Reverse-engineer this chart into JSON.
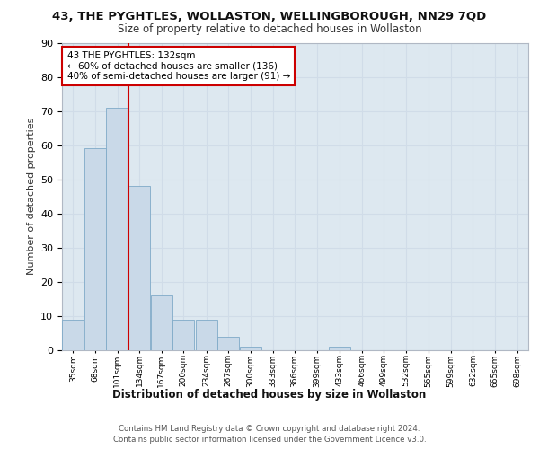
{
  "title1": "43, THE PYGHTLES, WOLLASTON, WELLINGBOROUGH, NN29 7QD",
  "title2": "Size of property relative to detached houses in Wollaston",
  "xlabel": "Distribution of detached houses by size in Wollaston",
  "ylabel": "Number of detached properties",
  "bin_labels": [
    "35sqm",
    "68sqm",
    "101sqm",
    "134sqm",
    "167sqm",
    "200sqm",
    "234sqm",
    "267sqm",
    "300sqm",
    "333sqm",
    "366sqm",
    "399sqm",
    "433sqm",
    "466sqm",
    "499sqm",
    "532sqm",
    "565sqm",
    "599sqm",
    "632sqm",
    "665sqm",
    "698sqm"
  ],
  "bar_heights": [
    9,
    59,
    71,
    48,
    16,
    9,
    9,
    4,
    1,
    0,
    0,
    0,
    1,
    0,
    0,
    0,
    0,
    0,
    0,
    0,
    0
  ],
  "bar_color": "#c9d9e8",
  "bar_edge_color": "#7faac8",
  "bin_edges": [
    35,
    68,
    101,
    134,
    167,
    200,
    234,
    267,
    300,
    333,
    366,
    399,
    433,
    466,
    499,
    532,
    565,
    599,
    632,
    665,
    698
  ],
  "bin_width": 33,
  "ylim": [
    0,
    90
  ],
  "yticks": [
    0,
    10,
    20,
    30,
    40,
    50,
    60,
    70,
    80,
    90
  ],
  "annotation_text": "43 THE PYGHTLES: 132sqm\n← 60% of detached houses are smaller (136)\n40% of semi-detached houses are larger (91) →",
  "annotation_box_color": "#ffffff",
  "annotation_box_edge_color": "#cc0000",
  "vline_color": "#cc0000",
  "vline_x": 134,
  "grid_color": "#d0dce8",
  "background_color": "#dde8f0",
  "fig_background": "#ffffff",
  "footer_line1": "Contains HM Land Registry data © Crown copyright and database right 2024.",
  "footer_line2": "Contains public sector information licensed under the Government Licence v3.0."
}
